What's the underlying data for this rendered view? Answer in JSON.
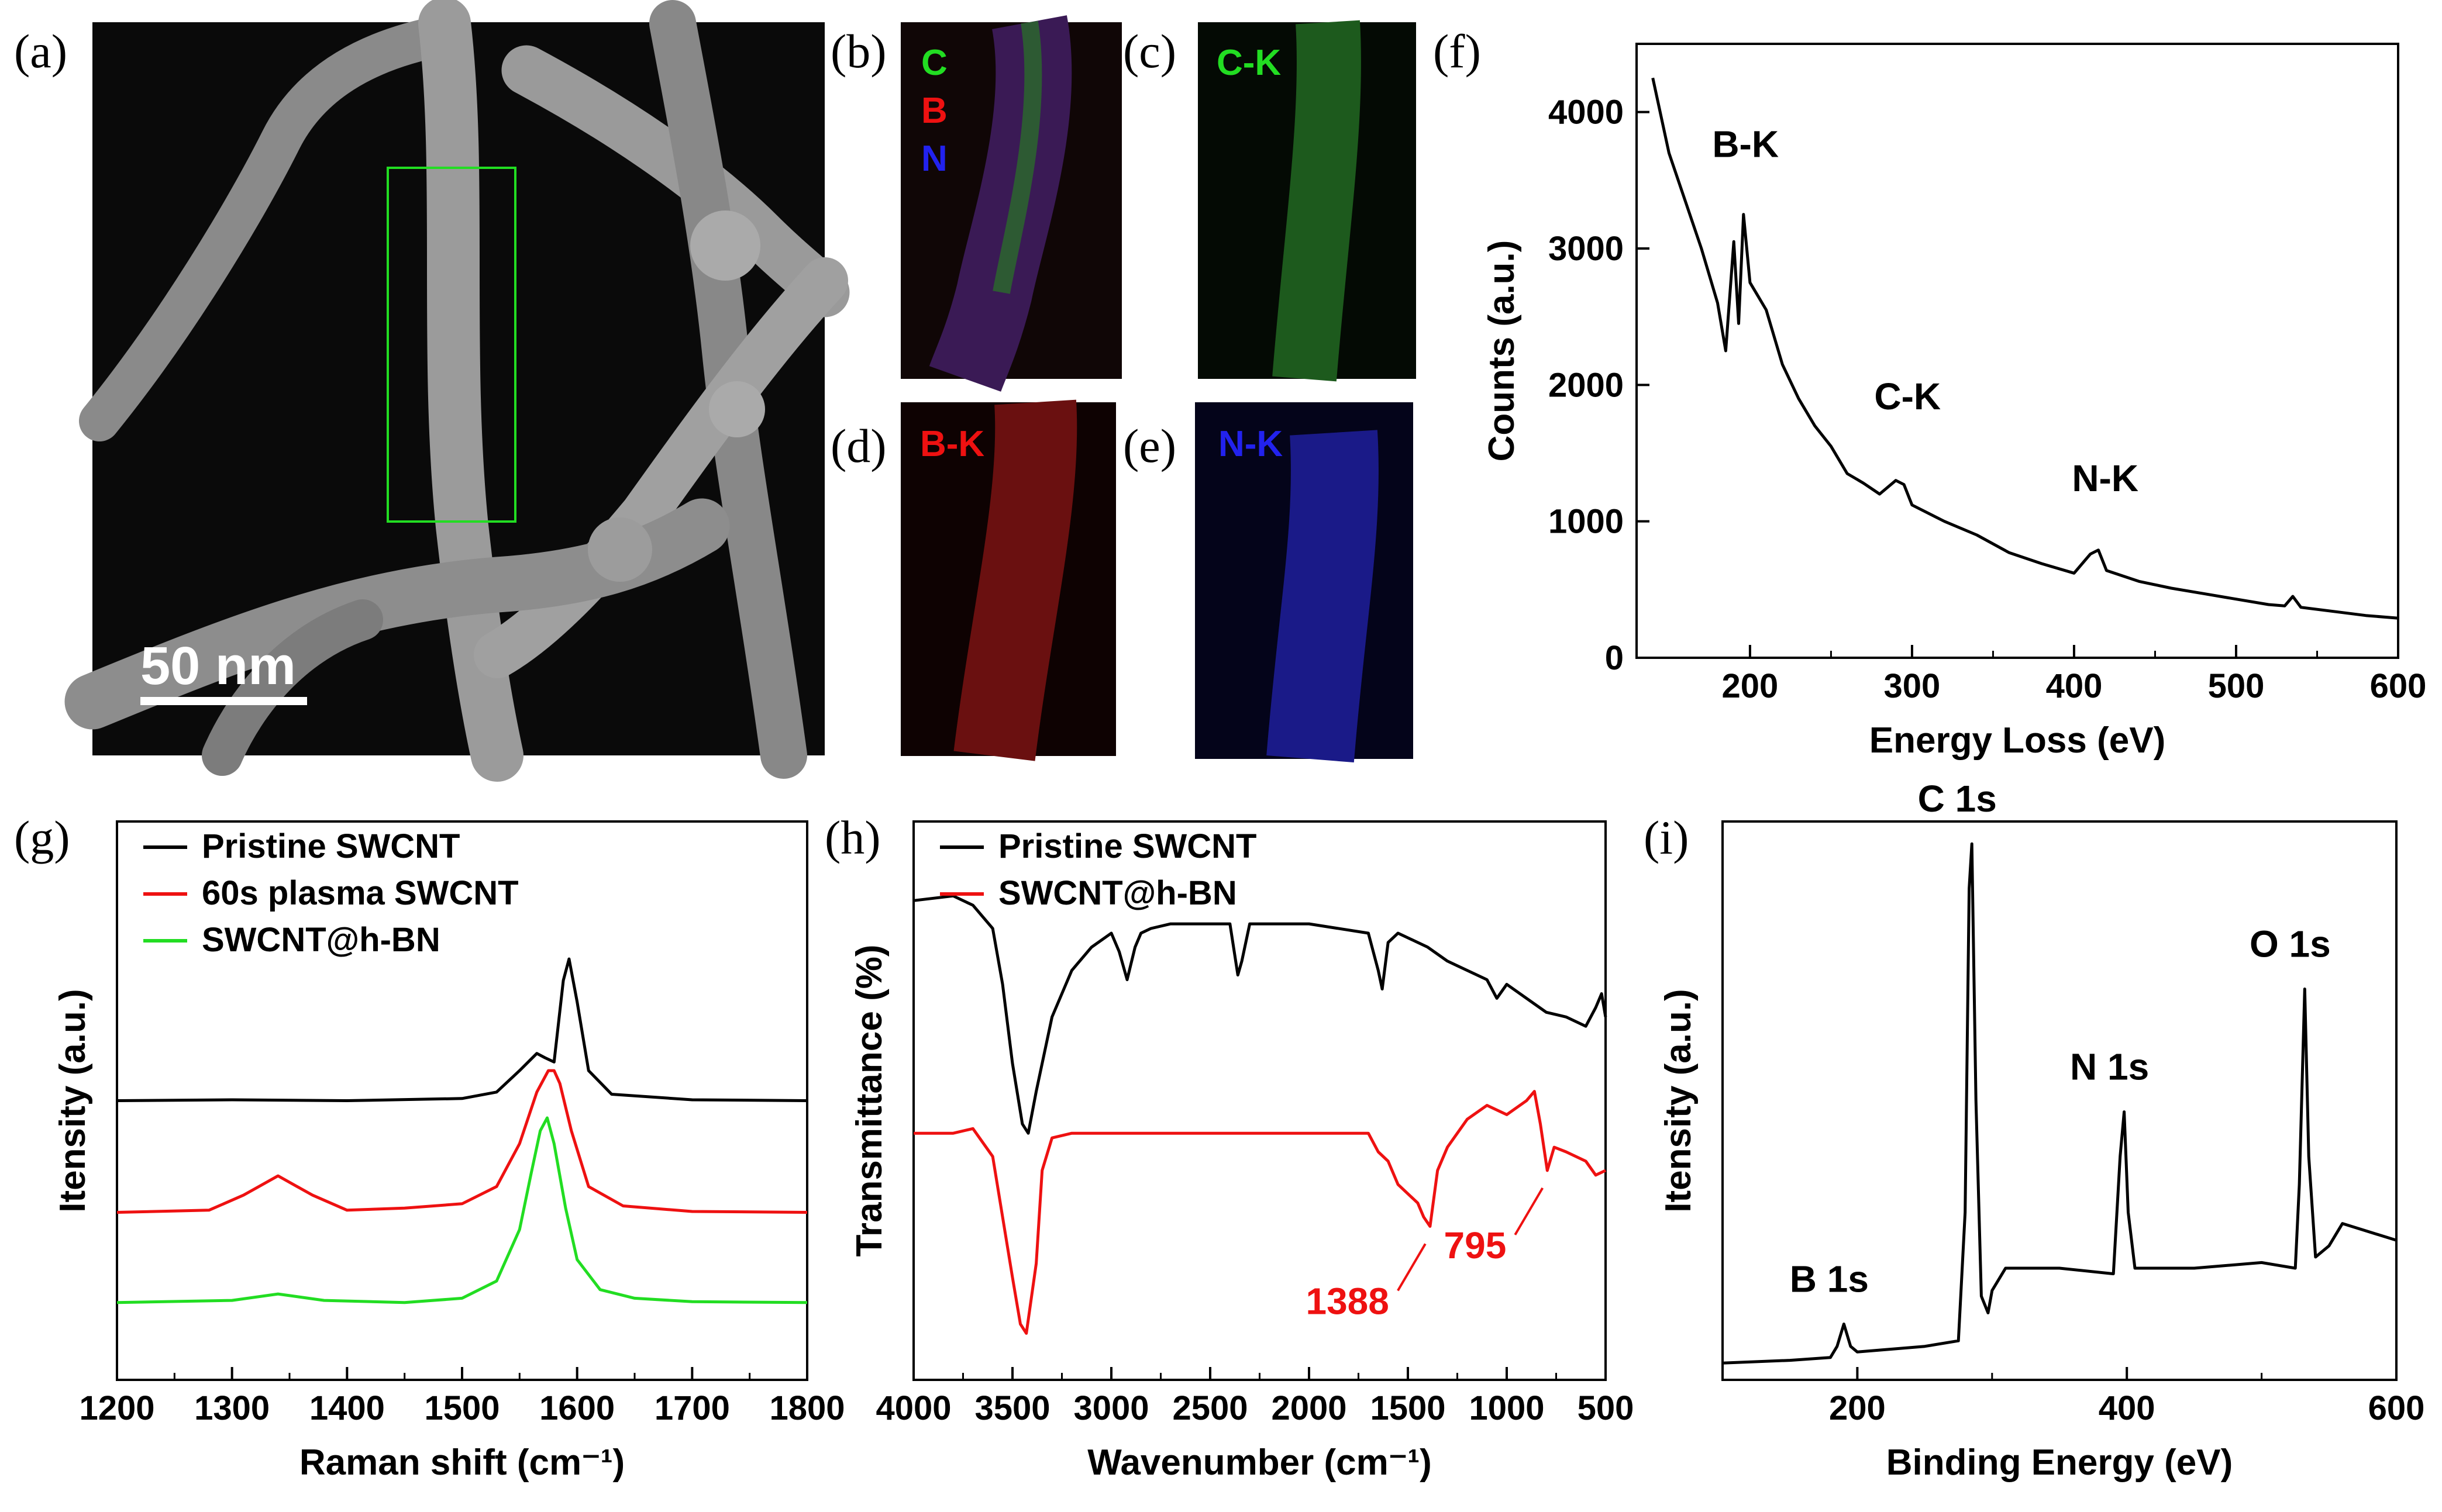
{
  "panels": {
    "a": {
      "letter": "(a)",
      "scale_bar": "50 nm"
    },
    "b": {
      "letter": "(b)",
      "labels": [
        {
          "text": "C",
          "color": "#22dd22"
        },
        {
          "text": "B",
          "color": "#ee1111"
        },
        {
          "text": "N",
          "color": "#2222ee"
        }
      ]
    },
    "c": {
      "letter": "(c)",
      "label": "C-K",
      "color": "#22dd22"
    },
    "d": {
      "letter": "(d)",
      "label": "B-K",
      "color": "#ee1111"
    },
    "e": {
      "letter": "(e)",
      "label": "N-K",
      "color": "#2222ee"
    },
    "f": {
      "letter": "(f)"
    },
    "g": {
      "letter": "(g)"
    },
    "h": {
      "letter": "(h)"
    },
    "i": {
      "letter": "(i)"
    }
  },
  "chart_data": [
    {
      "id": "f",
      "type": "line",
      "xlabel": "Energy Loss (eV)",
      "ylabel": "Counts (a.u.)",
      "xlim": [
        130,
        600
      ],
      "ylim": [
        0,
        4500
      ],
      "xticks": [
        200,
        300,
        400,
        500,
        600
      ],
      "yticks": [
        0,
        1000,
        2000,
        3000,
        4000
      ],
      "annotations": [
        {
          "text": "B-K",
          "x": 190,
          "y": 3500
        },
        {
          "text": "C-K",
          "x": 290,
          "y": 1650
        },
        {
          "text": "N-K",
          "x": 412,
          "y": 1050
        }
      ],
      "series": [
        {
          "color": "#000000",
          "x": [
            140,
            150,
            160,
            170,
            180,
            185,
            190,
            193,
            196,
            200,
            205,
            210,
            220,
            230,
            240,
            250,
            260,
            270,
            280,
            290,
            295,
            300,
            320,
            340,
            360,
            380,
            400,
            410,
            415,
            420,
            440,
            460,
            480,
            500,
            520,
            530,
            535,
            540,
            560,
            580,
            600
          ],
          "y": [
            4250,
            3700,
            3350,
            3000,
            2600,
            2250,
            3050,
            2450,
            3250,
            2750,
            2650,
            2550,
            2150,
            1900,
            1700,
            1550,
            1350,
            1280,
            1200,
            1300,
            1270,
            1120,
            1000,
            900,
            770,
            690,
            620,
            760,
            790,
            640,
            560,
            510,
            470,
            430,
            390,
            380,
            450,
            370,
            340,
            310,
            290
          ]
        }
      ]
    },
    {
      "id": "g",
      "type": "line",
      "xlabel": "Raman shift (cm⁻¹)",
      "ylabel": "Itensity (a.u.)",
      "xlim": [
        1200,
        1800
      ],
      "ylim": [
        0,
        1.3
      ],
      "xticks": [
        1200,
        1300,
        1400,
        1500,
        1600,
        1700,
        1800
      ],
      "legend_position": "top-left",
      "series": [
        {
          "name": "Pristine SWCNT",
          "color": "#000000",
          "x": [
            1200,
            1300,
            1400,
            1500,
            1530,
            1550,
            1565,
            1572,
            1580,
            1588,
            1593,
            1600,
            1610,
            1630,
            1700,
            1800
          ],
          "y": [
            0.65,
            0.652,
            0.65,
            0.655,
            0.67,
            0.72,
            0.76,
            0.75,
            0.74,
            0.93,
            0.98,
            0.88,
            0.72,
            0.665,
            0.652,
            0.65
          ]
        },
        {
          "name": "60s plasma SWCNT",
          "color": "#ee1111",
          "x": [
            1200,
            1280,
            1310,
            1340,
            1370,
            1400,
            1450,
            1500,
            1530,
            1550,
            1565,
            1575,
            1580,
            1585,
            1595,
            1610,
            1640,
            1700,
            1800
          ],
          "y": [
            0.39,
            0.395,
            0.43,
            0.475,
            0.43,
            0.395,
            0.4,
            0.41,
            0.45,
            0.55,
            0.67,
            0.72,
            0.72,
            0.69,
            0.58,
            0.45,
            0.405,
            0.392,
            0.39
          ]
        },
        {
          "name": "SWCNT@h-BN",
          "color": "#22dd22",
          "x": [
            1200,
            1300,
            1340,
            1380,
            1450,
            1500,
            1530,
            1550,
            1560,
            1568,
            1574,
            1580,
            1590,
            1600,
            1620,
            1650,
            1700,
            1800
          ],
          "y": [
            0.18,
            0.185,
            0.2,
            0.185,
            0.18,
            0.19,
            0.23,
            0.35,
            0.48,
            0.58,
            0.61,
            0.55,
            0.4,
            0.28,
            0.21,
            0.19,
            0.182,
            0.18
          ]
        }
      ]
    },
    {
      "id": "h",
      "type": "line",
      "xlabel": "Wavenumber (cm⁻¹)",
      "ylabel": "Transmittance (%)",
      "xlim": [
        4000,
        500
      ],
      "ylim": [
        0,
        1.2
      ],
      "xticks": [
        4000,
        3500,
        3000,
        2500,
        2000,
        1500,
        1000,
        500
      ],
      "legend_position": "top-left",
      "annotations": [
        {
          "text": "1388",
          "x": 1388,
          "color": "#ee1111"
        },
        {
          "text": "795",
          "x": 795,
          "color": "#ee1111"
        }
      ],
      "series": [
        {
          "name": "Pristine SWCNT",
          "color": "#000000",
          "x": [
            4000,
            3800,
            3700,
            3600,
            3550,
            3500,
            3450,
            3420,
            3380,
            3300,
            3200,
            3100,
            3000,
            2960,
            2920,
            2880,
            2850,
            2800,
            2700,
            2500,
            2400,
            2360,
            2340,
            2300,
            2000,
            1700,
            1650,
            1630,
            1600,
            1550,
            1400,
            1300,
            1100,
            1050,
            1000,
            900,
            800,
            700,
            600,
            550,
            520,
            500
          ],
          "y": [
            1.03,
            1.04,
            1.02,
            0.97,
            0.85,
            0.68,
            0.55,
            0.53,
            0.62,
            0.78,
            0.88,
            0.93,
            0.96,
            0.92,
            0.86,
            0.93,
            0.96,
            0.97,
            0.98,
            0.98,
            0.98,
            0.87,
            0.9,
            0.98,
            0.98,
            0.96,
            0.88,
            0.84,
            0.94,
            0.96,
            0.93,
            0.9,
            0.86,
            0.82,
            0.85,
            0.82,
            0.79,
            0.78,
            0.76,
            0.8,
            0.83,
            0.78
          ]
        },
        {
          "name": "SWCNT@h-BN",
          "color": "#ee1111",
          "x": [
            4000,
            3800,
            3700,
            3600,
            3550,
            3500,
            3460,
            3430,
            3380,
            3350,
            3300,
            3200,
            3000,
            2500,
            2000,
            1700,
            1650,
            1600,
            1550,
            1450,
            1420,
            1388,
            1350,
            1300,
            1200,
            1100,
            1000,
            900,
            860,
            830,
            795,
            760,
            700,
            600,
            550,
            500
          ],
          "y": [
            0.53,
            0.53,
            0.54,
            0.48,
            0.35,
            0.22,
            0.12,
            0.1,
            0.25,
            0.45,
            0.52,
            0.53,
            0.53,
            0.53,
            0.53,
            0.53,
            0.49,
            0.47,
            0.42,
            0.38,
            0.35,
            0.33,
            0.45,
            0.5,
            0.56,
            0.59,
            0.57,
            0.6,
            0.62,
            0.55,
            0.45,
            0.5,
            0.49,
            0.47,
            0.44,
            0.45
          ]
        }
      ]
    },
    {
      "id": "i",
      "type": "line",
      "xlabel": "Binding Energy (eV)",
      "ylabel": "Itensity (a.u.)",
      "xlim": [
        100,
        600
      ],
      "ylim": [
        0,
        1.0
      ],
      "xticks": [
        200,
        400,
        600
      ],
      "annotations": [
        {
          "text": "B 1s",
          "x": 190
        },
        {
          "text": "C 1s",
          "x": 285
        },
        {
          "text": "N 1s",
          "x": 398
        },
        {
          "text": "O 1s",
          "x": 532
        }
      ],
      "series": [
        {
          "color": "#000000",
          "x": [
            100,
            150,
            180,
            185,
            190,
            195,
            200,
            250,
            275,
            280,
            283,
            285,
            288,
            292,
            297,
            300,
            310,
            350,
            390,
            395,
            398,
            401,
            406,
            450,
            500,
            525,
            528,
            532,
            535,
            540,
            550,
            560,
            600
          ],
          "y": [
            0.03,
            0.035,
            0.04,
            0.06,
            0.1,
            0.06,
            0.05,
            0.06,
            0.07,
            0.3,
            0.88,
            0.96,
            0.5,
            0.15,
            0.12,
            0.16,
            0.2,
            0.2,
            0.19,
            0.4,
            0.48,
            0.3,
            0.2,
            0.2,
            0.21,
            0.2,
            0.35,
            0.7,
            0.4,
            0.22,
            0.24,
            0.28,
            0.25
          ]
        }
      ]
    }
  ]
}
